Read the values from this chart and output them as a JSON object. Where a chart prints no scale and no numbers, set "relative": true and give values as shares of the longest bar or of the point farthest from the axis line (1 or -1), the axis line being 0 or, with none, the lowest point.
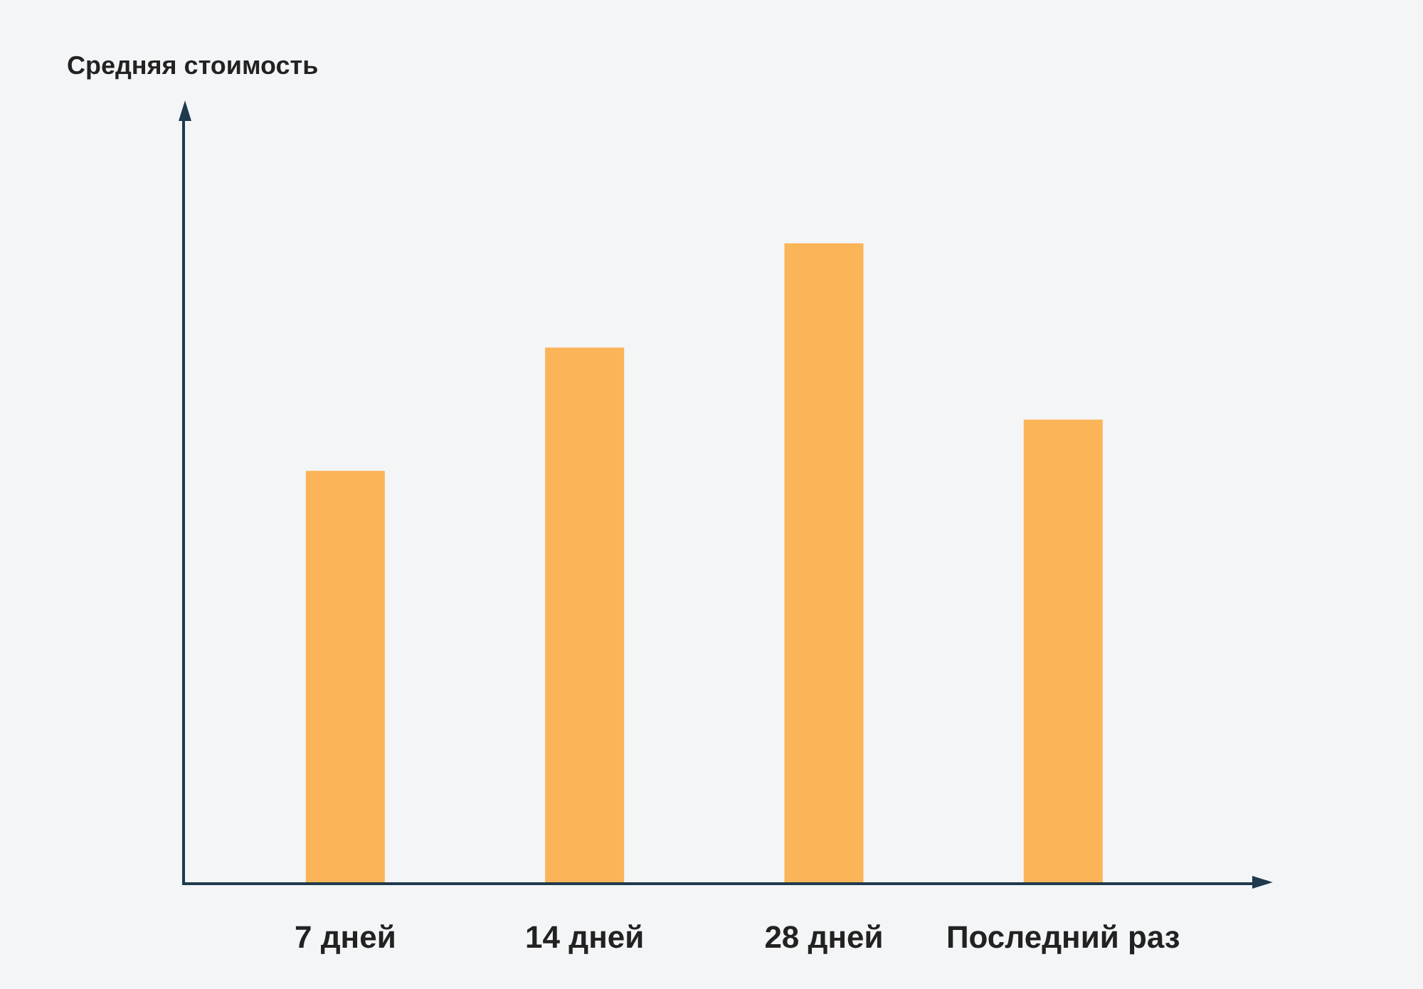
{
  "chart_data": {
    "type": "bar",
    "annotations": [
      "Средняя стоимость"
    ],
    "categories": [
      "7 дней",
      "14 дней",
      "28 дней",
      "Последний раз"
    ],
    "values": [
      0.644,
      0.837,
      1,
      0.724
    ],
    "color": "#fbb457",
    "relative": true
  }
}
